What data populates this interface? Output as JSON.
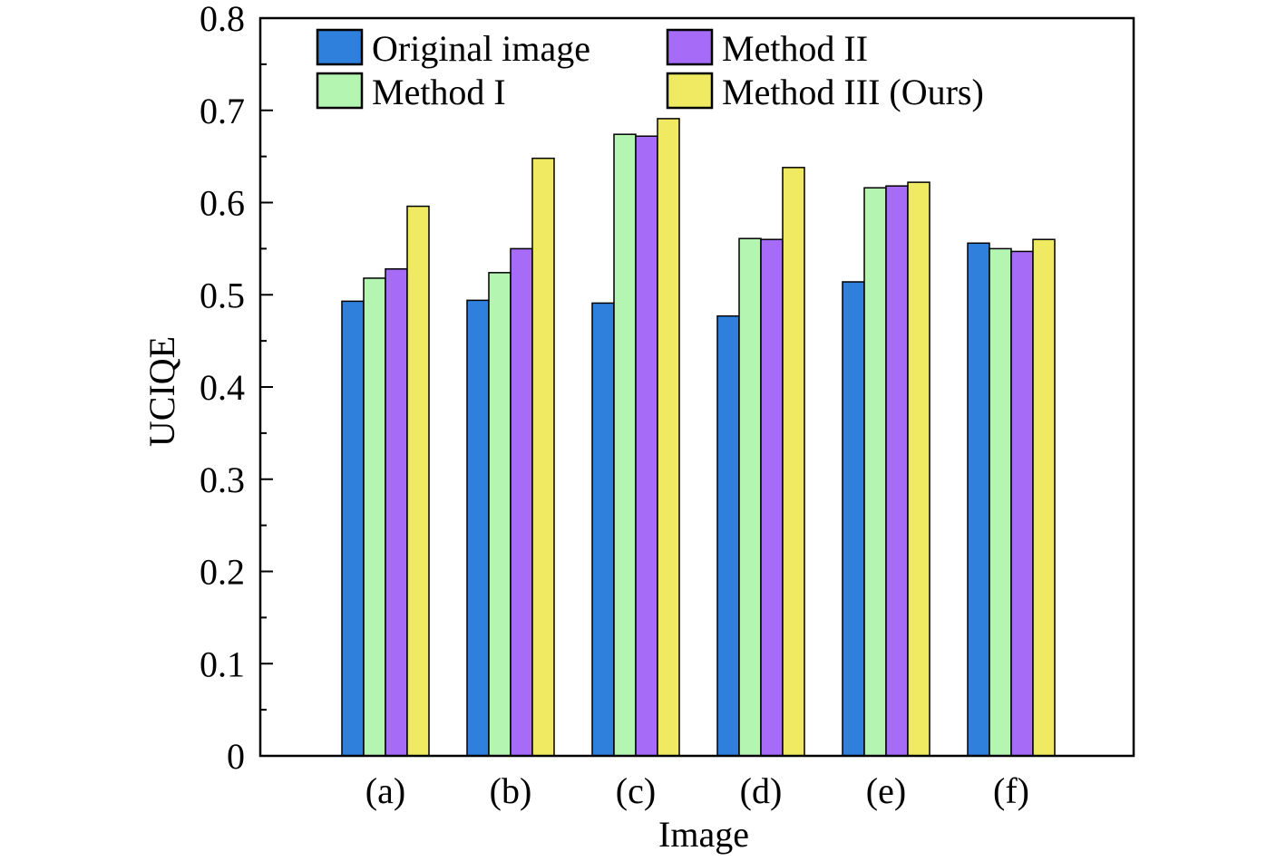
{
  "chart_data": {
    "type": "bar",
    "title": "",
    "xlabel": "Image",
    "ylabel": "UCIQE",
    "ylim": [
      0,
      0.8
    ],
    "yticks": [
      "0",
      "0.1",
      "0.2",
      "0.3",
      "0.4",
      "0.5",
      "0.6",
      "0.7",
      "0.8"
    ],
    "categories": [
      "(a)",
      "(b)",
      "(c)",
      "(d)",
      "(e)",
      "(f)"
    ],
    "grid": false,
    "legend_position": "top",
    "series": [
      {
        "name": "Original image",
        "color": "#2f7fdd",
        "values": [
          0.493,
          0.494,
          0.491,
          0.477,
          0.514,
          0.556
        ]
      },
      {
        "name": "Method I",
        "color": "#b4f5b2",
        "values": [
          0.518,
          0.524,
          0.674,
          0.561,
          0.616,
          0.55
        ]
      },
      {
        "name": "Method II",
        "color": "#a66bf7",
        "values": [
          0.528,
          0.55,
          0.672,
          0.56,
          0.618,
          0.547
        ]
      },
      {
        "name": "Method III (Ours)",
        "color": "#efea62",
        "values": [
          0.596,
          0.648,
          0.691,
          0.638,
          0.622,
          0.56
        ]
      }
    ]
  }
}
